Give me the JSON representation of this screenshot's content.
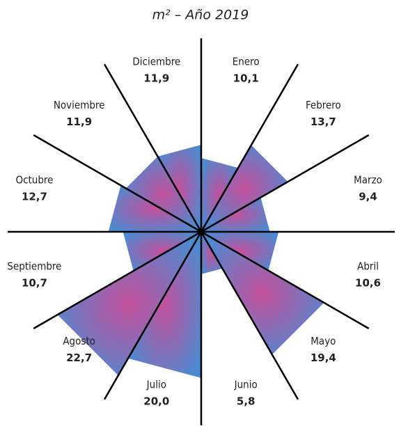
{
  "chart_data": {
    "type": "polar-area",
    "title": "m² – Año 2019",
    "categories": [
      "Enero",
      "Febrero",
      "Marzo",
      "Abril",
      "Mayo",
      "Junio",
      "Julio",
      "Agosto",
      "Septiembre",
      "Octubre",
      "Noviembre",
      "Diciembre"
    ],
    "values": [
      10.1,
      13.7,
      9.4,
      10.6,
      19.4,
      5.8,
      20.0,
      22.7,
      10.7,
      12.7,
      11.9,
      11.9
    ],
    "value_labels": [
      "10,1",
      "13,7",
      "9,4",
      "10,6",
      "19,4",
      "5,8",
      "20,0",
      "22,7",
      "10,7",
      "12,7",
      "11,9",
      "11,9"
    ],
    "colors": [
      "#c4509c",
      "#4d8ad0"
    ]
  }
}
